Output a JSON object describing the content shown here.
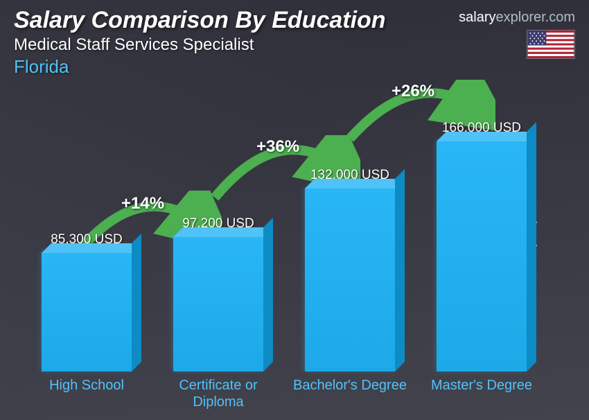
{
  "header": {
    "title": "Salary Comparison By Education",
    "subtitle": "Medical Staff Services Specialist",
    "location": "Florida"
  },
  "brand": {
    "name_part1": "salary",
    "name_part2": "explorer",
    "tld": ".com"
  },
  "y_axis_label": "Average Yearly Salary",
  "chart": {
    "type": "bar",
    "max_value": 180000,
    "bar_color": "#29b6f6",
    "bar_top_color": "#4fc3f7",
    "bar_side_color": "#0d8bc4",
    "arrow_color": "#4caf50",
    "text_color": "#ffffff",
    "label_color": "#4fc3f7",
    "bars": [
      {
        "label": "High School",
        "value": 85300,
        "display": "85,300 USD"
      },
      {
        "label": "Certificate or Diploma",
        "value": 97200,
        "display": "97,200 USD"
      },
      {
        "label": "Bachelor's Degree",
        "value": 132000,
        "display": "132,000 USD"
      },
      {
        "label": "Master's Degree",
        "value": 166000,
        "display": "166,000 USD"
      }
    ],
    "increases": [
      {
        "label": "+14%"
      },
      {
        "label": "+36%"
      },
      {
        "label": "+26%"
      }
    ]
  }
}
